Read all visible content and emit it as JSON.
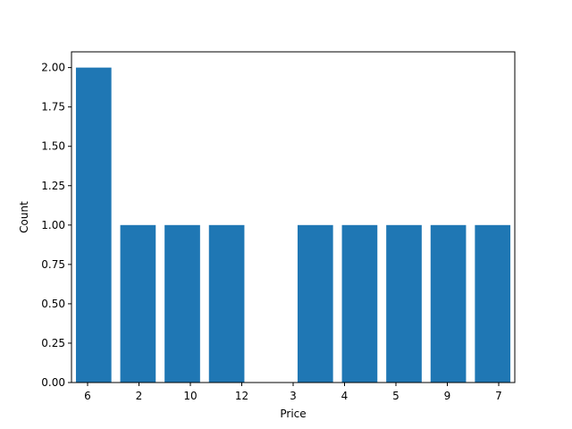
{
  "chart_data": {
    "type": "bar",
    "xlabel": "Price",
    "ylabel": "Count",
    "xtick_labels": [
      "6",
      "2",
      "10",
      "12",
      "3",
      "4",
      "5",
      "9",
      "7"
    ],
    "bars": [
      {
        "x": 0.5,
        "value": 2
      },
      {
        "x": 1.5,
        "value": 1
      },
      {
        "x": 2.5,
        "value": 1
      },
      {
        "x": 3.5,
        "value": 1
      },
      {
        "x": 5.5,
        "value": 1
      },
      {
        "x": 6.5,
        "value": 1
      },
      {
        "x": 7.5,
        "value": 1
      },
      {
        "x": 8.5,
        "value": 1
      },
      {
        "x": 9.5,
        "value": 1
      }
    ],
    "ylim": [
      0,
      2.1
    ],
    "yticks": [
      "0.00",
      "0.25",
      "0.50",
      "0.75",
      "1.00",
      "1.25",
      "1.50",
      "1.75",
      "2.00"
    ],
    "grid": false,
    "colors": {
      "bar": "#1f77b4",
      "axis": "#000000"
    }
  }
}
